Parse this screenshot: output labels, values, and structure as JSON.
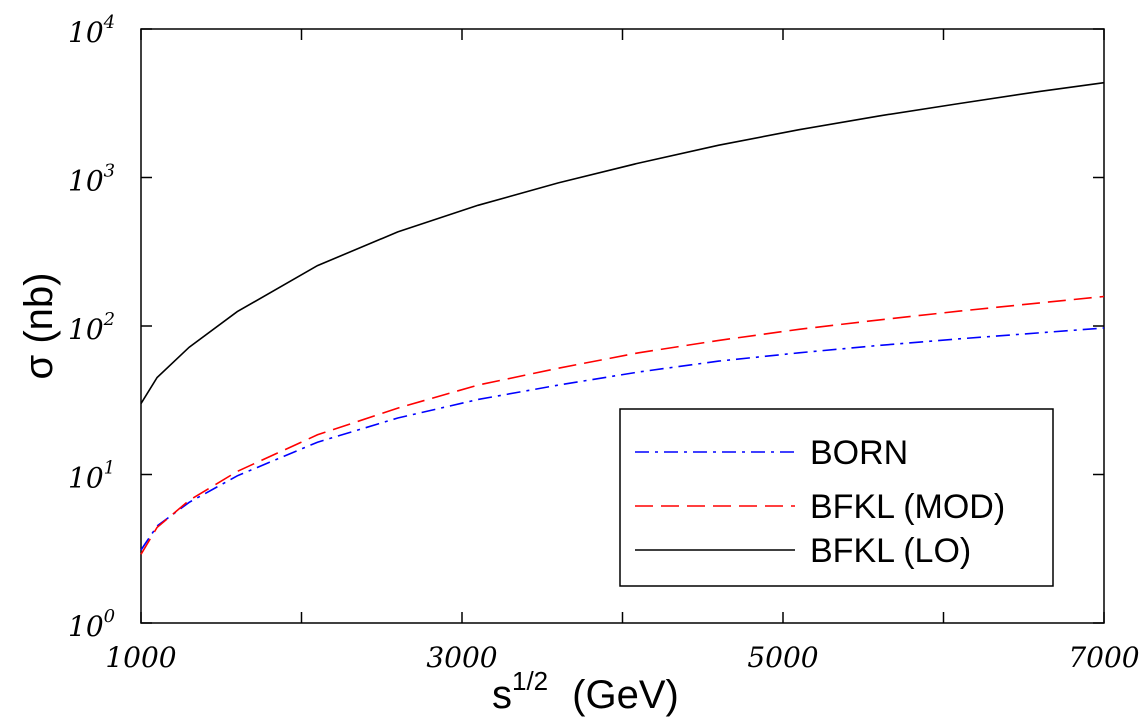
{
  "chart_data": {
    "type": "line",
    "xlabel": {
      "base": "s",
      "superscript": "1/2",
      "unit": "(GeV)"
    },
    "ylabel": "σ (nb)",
    "xlim": [
      1000,
      7000
    ],
    "ylim": [
      1,
      10000
    ],
    "yscale": "log",
    "grid": false,
    "legend_position": "bottom-right",
    "x_ticks": [
      "1000",
      "3000",
      "5000",
      "7000"
    ],
    "y_ticks": [
      {
        "base": "10",
        "exp": "0",
        "value": 1
      },
      {
        "base": "10",
        "exp": "1",
        "value": 10
      },
      {
        "base": "10",
        "exp": "2",
        "value": 100
      },
      {
        "base": "10",
        "exp": "3",
        "value": 1000
      },
      {
        "base": "10",
        "exp": "4",
        "value": 10000
      }
    ],
    "series": [
      {
        "name": "BORN",
        "color": "#0000ff",
        "dash": "dash-dot",
        "x": [
          1000,
          1100,
          1300,
          1600,
          2100,
          2600,
          3100,
          3600,
          4100,
          4600,
          5100,
          5600,
          6100,
          6600,
          7000
        ],
        "y": [
          3.1,
          4.5,
          6.5,
          9.8,
          16.5,
          24,
          32,
          40,
          49,
          58,
          66,
          74,
          82,
          90,
          97
        ]
      },
      {
        "name": "BFKL (MOD)",
        "color": "#ff0000",
        "dash": "dashed",
        "x": [
          1000,
          1100,
          1300,
          1600,
          2100,
          2600,
          3100,
          3600,
          4100,
          4600,
          5100,
          5600,
          6100,
          6600,
          7000
        ],
        "y": [
          2.9,
          4.4,
          6.7,
          10.5,
          18.5,
          28,
          40,
          52,
          66,
          80,
          95,
          110,
          126,
          143,
          158
        ]
      },
      {
        "name": "BFKL (LO)",
        "color": "#000000",
        "dash": "solid",
        "x": [
          1000,
          1100,
          1300,
          1600,
          2100,
          2600,
          3100,
          3600,
          4100,
          4600,
          5100,
          5600,
          6100,
          6600,
          7000
        ],
        "y": [
          30,
          45,
          72,
          125,
          255,
          430,
          650,
          920,
          1250,
          1650,
          2100,
          2600,
          3150,
          3800,
          4350
        ]
      }
    ]
  }
}
